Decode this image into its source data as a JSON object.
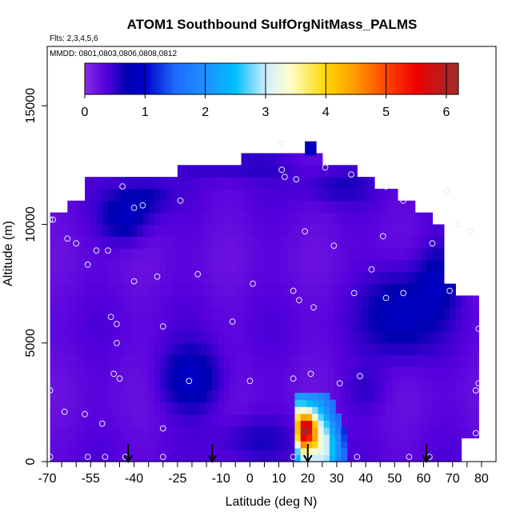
{
  "header": {
    "title": "ATOM1 Southbound SulfOrgNitMass_PALMS",
    "flights_label": "Flts: 2,3,4,5,6",
    "dates_label": "MMDD: 0801,0803,0806,0808,0812"
  },
  "chart_data": {
    "type": "heatmap",
    "title": "ATOM1 Southbound SulfOrgNitMass_PALMS",
    "xlabel": "Latitude (deg N)",
    "ylabel": "Altitude (m)",
    "xlim": [
      -70,
      85
    ],
    "ylim": [
      0,
      17500
    ],
    "x_ticks": [
      -70,
      -55,
      -40,
      -25,
      -10,
      0,
      10,
      20,
      30,
      40,
      50,
      60,
      70,
      80
    ],
    "x_tick_labels": [
      "-70",
      "-55",
      "-40",
      "-25",
      "-10",
      "0",
      "10",
      "20",
      "30",
      "40",
      "50",
      "60",
      "70",
      "80"
    ],
    "y_ticks": [
      0,
      5000,
      10000,
      15000
    ],
    "y_tick_labels": [
      "0",
      "5000",
      "10000",
      "15000"
    ],
    "colorbar": {
      "range": [
        0,
        6.2
      ],
      "ticks": [
        0,
        1,
        2,
        3,
        4,
        5,
        6
      ],
      "tick_labels": [
        "0",
        "1",
        "2",
        "3",
        "4",
        "5",
        "6"
      ],
      "stops": [
        {
          "v": 0.0,
          "color": "#8a2be2"
        },
        {
          "v": 0.35,
          "color": "#5500dd"
        },
        {
          "v": 0.7,
          "color": "#0000b0"
        },
        {
          "v": 1.0,
          "color": "#0000cc"
        },
        {
          "v": 1.5,
          "color": "#1e6cff"
        },
        {
          "v": 2.0,
          "color": "#1e90ff"
        },
        {
          "v": 2.5,
          "color": "#00bfff"
        },
        {
          "v": 3.0,
          "color": "#cfeeff"
        },
        {
          "v": 3.4,
          "color": "#ffffcc"
        },
        {
          "v": 4.0,
          "color": "#ffd700"
        },
        {
          "v": 4.5,
          "color": "#ff9900"
        },
        {
          "v": 5.0,
          "color": "#ff4500"
        },
        {
          "v": 5.5,
          "color": "#ee0000"
        },
        {
          "v": 6.0,
          "color": "#b22222"
        },
        {
          "v": 6.2,
          "color": "#a52a2a"
        }
      ]
    },
    "domain_profile": [
      [
        -69,
        0,
        10500
      ],
      [
        -63,
        0,
        10500
      ],
      [
        -63,
        0,
        11000
      ],
      [
        -57,
        0,
        11000
      ],
      [
        -57,
        0,
        11700
      ],
      [
        -40,
        0,
        11700
      ],
      [
        -40,
        0,
        12000
      ],
      [
        -24,
        0,
        12000
      ],
      [
        -24,
        0,
        12400
      ],
      [
        -3,
        0,
        12400
      ],
      [
        -3,
        0,
        12900
      ],
      [
        26,
        0,
        12900
      ],
      [
        26,
        0,
        12400
      ],
      [
        38,
        0,
        12400
      ],
      [
        38,
        0,
        11800
      ],
      [
        44,
        0,
        11800
      ],
      [
        44,
        0,
        11300
      ],
      [
        52,
        0,
        11300
      ],
      [
        52,
        0,
        10900
      ],
      [
        57,
        0,
        10900
      ],
      [
        57,
        0,
        10300
      ],
      [
        63,
        0,
        10300
      ],
      [
        63,
        0,
        9800
      ],
      [
        68,
        0,
        9800
      ],
      [
        68,
        0,
        7200
      ],
      [
        72,
        0,
        7200
      ],
      [
        72,
        0,
        6800
      ],
      [
        79,
        0,
        6800
      ]
    ],
    "spike": [
      19,
      23,
      12900,
      13500
    ],
    "lower_right_step": [
      72,
      79,
      0,
      1000
    ],
    "features": [
      {
        "lat": -43,
        "alt": 10300,
        "rlat": 8,
        "ralt": 1000,
        "value": 0.85
      },
      {
        "lat": -36,
        "alt": 11200,
        "rlat": 8,
        "ralt": 700,
        "value": 0.65
      },
      {
        "lat": -20,
        "alt": 3500,
        "rlat": 10,
        "ralt": 1300,
        "value": 0.95
      },
      {
        "lat": -5,
        "alt": 12500,
        "rlat": 18,
        "ralt": 600,
        "value": 0.55
      },
      {
        "lat": 52,
        "alt": 6300,
        "rlat": 12,
        "ralt": 1800,
        "value": 0.9
      },
      {
        "lat": 65,
        "alt": 7700,
        "rlat": 7,
        "ralt": 1500,
        "value": 0.75
      },
      {
        "lat": 2,
        "alt": 1000,
        "rlat": 14,
        "ralt": 900,
        "value": 0.55
      },
      {
        "lat": 30,
        "alt": 11600,
        "rlat": 12,
        "ralt": 700,
        "value": 0.55
      },
      {
        "lat": 40,
        "alt": 3000,
        "rlat": 8,
        "ralt": 900,
        "value": 0.5
      }
    ],
    "plume": {
      "lat_start": 15,
      "lat_end": 33,
      "alt_top": 2900,
      "columns": [
        {
          "lat": 16.5,
          "values": [
            2.4,
            2.7,
            3.3,
            3.9,
            4.2,
            4.2,
            3.8,
            3.2,
            2.6,
            2.1
          ]
        },
        {
          "lat": 18.5,
          "values": [
            3.0,
            3.6,
            4.6,
            5.6,
            6.0,
            5.6,
            4.4,
            3.4,
            2.6,
            2.1
          ]
        },
        {
          "lat": 20.5,
          "values": [
            3.1,
            3.5,
            4.3,
            5.3,
            5.9,
            5.5,
            4.3,
            3.2,
            2.5,
            2.0
          ]
        },
        {
          "lat": 22.5,
          "values": [
            3.0,
            3.3,
            4.0,
            4.4,
            4.4,
            4.1,
            3.4,
            2.8,
            2.3,
            2.0
          ]
        },
        {
          "lat": 24.5,
          "values": [
            3.0,
            3.2,
            3.3,
            3.3,
            3.2,
            3.0,
            2.7,
            2.4,
            2.1,
            1.9
          ]
        },
        {
          "lat": 26.5,
          "values": [
            2.9,
            3.0,
            3.0,
            3.0,
            2.8,
            2.6,
            2.3,
            2.0,
            1.8,
            1.7
          ]
        },
        {
          "lat": 28.5,
          "values": [
            2.4,
            2.5,
            2.5,
            2.4,
            2.2,
            2.0,
            1.8,
            1.7,
            1.6,
            null
          ]
        },
        {
          "lat": 30.5,
          "values": [
            1.9,
            2.0,
            2.0,
            1.9,
            1.7,
            1.6,
            1.5,
            null,
            null,
            null
          ]
        },
        {
          "lat": 32.5,
          "values": [
            1.5,
            1.5,
            1.4,
            1.3,
            1.2,
            null,
            null,
            null,
            null,
            null
          ]
        }
      ]
    },
    "points": [
      {
        "lat": 11,
        "alt": 13400
      },
      {
        "lat": 11,
        "alt": 12300
      },
      {
        "lat": 12,
        "alt": 12000
      },
      {
        "lat": 16,
        "alt": 11900
      },
      {
        "lat": 26,
        "alt": 12400
      },
      {
        "lat": 35,
        "alt": 12100
      },
      {
        "lat": 47,
        "alt": 11600
      },
      {
        "lat": 53,
        "alt": 11000
      },
      {
        "lat": 68,
        "alt": 11400
      },
      {
        "lat": -44,
        "alt": 11600
      },
      {
        "lat": -40,
        "alt": 10700
      },
      {
        "lat": -37,
        "alt": 10800
      },
      {
        "lat": -24,
        "alt": 11000
      },
      {
        "lat": -69,
        "alt": 10200
      },
      {
        "lat": -68,
        "alt": 10200
      },
      {
        "lat": -63,
        "alt": 9400
      },
      {
        "lat": -60,
        "alt": 9200
      },
      {
        "lat": -53,
        "alt": 8900
      },
      {
        "lat": -49,
        "alt": 8900
      },
      {
        "lat": -56,
        "alt": 8300
      },
      {
        "lat": -40,
        "alt": 7600
      },
      {
        "lat": -32,
        "alt": 7800
      },
      {
        "lat": -18,
        "alt": 7900
      },
      {
        "lat": 1,
        "alt": 7500
      },
      {
        "lat": 19,
        "alt": 9700
      },
      {
        "lat": 29,
        "alt": 9100
      },
      {
        "lat": 46,
        "alt": 9500
      },
      {
        "lat": 63,
        "alt": 9200
      },
      {
        "lat": 72,
        "alt": 10000
      },
      {
        "lat": 76,
        "alt": 9700
      },
      {
        "lat": 42,
        "alt": 8100
      },
      {
        "lat": 36,
        "alt": 7100
      },
      {
        "lat": 53,
        "alt": 7100
      },
      {
        "lat": 69,
        "alt": 7200
      },
      {
        "lat": 15,
        "alt": 7200
      },
      {
        "lat": 17,
        "alt": 6800
      },
      {
        "lat": 22,
        "alt": 6500
      },
      {
        "lat": 47,
        "alt": 6900
      },
      {
        "lat": -48,
        "alt": 6100
      },
      {
        "lat": -46,
        "alt": 5800
      },
      {
        "lat": -30,
        "alt": 5700
      },
      {
        "lat": -6,
        "alt": 5900
      },
      {
        "lat": 79,
        "alt": 5600
      },
      {
        "lat": -46,
        "alt": 5000
      },
      {
        "lat": -47,
        "alt": 3700
      },
      {
        "lat": -45,
        "alt": 3500
      },
      {
        "lat": -21,
        "alt": 3400
      },
      {
        "lat": 0,
        "alt": 3400
      },
      {
        "lat": 15,
        "alt": 3500
      },
      {
        "lat": 21,
        "alt": 3700
      },
      {
        "lat": 31,
        "alt": 3300
      },
      {
        "lat": 38,
        "alt": 3600
      },
      {
        "lat": 79,
        "alt": 3300
      },
      {
        "lat": 78,
        "alt": 3000
      },
      {
        "lat": -69,
        "alt": 3000
      },
      {
        "lat": -64,
        "alt": 2100
      },
      {
        "lat": -57,
        "alt": 2000
      },
      {
        "lat": -51,
        "alt": 1600
      },
      {
        "lat": -30,
        "alt": 1400
      },
      {
        "lat": 78,
        "alt": 1200
      },
      {
        "lat": -69,
        "alt": 200
      },
      {
        "lat": -56,
        "alt": 200
      },
      {
        "lat": -50,
        "alt": 200
      },
      {
        "lat": -43,
        "alt": 200
      },
      {
        "lat": -30,
        "alt": 200
      },
      {
        "lat": 15,
        "alt": 200
      },
      {
        "lat": 19,
        "alt": 200
      },
      {
        "lat": 37,
        "alt": 200
      },
      {
        "lat": 55,
        "alt": 200
      },
      {
        "lat": 62,
        "alt": 200
      }
    ],
    "arrows_lat": [
      -42,
      -13,
      20,
      61
    ]
  }
}
